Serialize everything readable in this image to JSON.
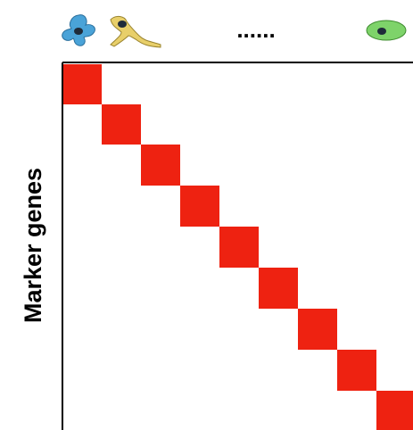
{
  "header": {
    "ellipsis": "......"
  },
  "axis": {
    "y_label": "Marker genes"
  }
}
